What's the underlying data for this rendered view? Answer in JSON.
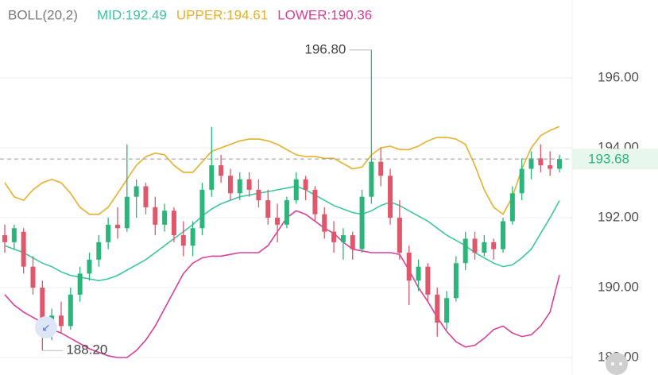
{
  "chart_data": {
    "type": "candlestick",
    "indicator_label": "BOLL(20,2)",
    "ylim": [
      187.5,
      198.23
    ],
    "yticks": [
      {
        "value": 188,
        "label": "188.00"
      },
      {
        "value": 190,
        "label": "190.00"
      },
      {
        "value": 192,
        "label": "192.00"
      },
      {
        "value": 194,
        "label": "194.00"
      },
      {
        "value": 196,
        "label": "196.00"
      }
    ],
    "grid": true,
    "up_color": "#2bb57a",
    "down_color": "#e0566a",
    "max_label": "196.80",
    "min_label": "188.20",
    "candles": {
      "open": [
        191.5,
        191.3,
        191.6,
        190.6,
        190.0,
        188.8,
        189.2,
        188.9,
        189.8,
        190.4,
        190.8,
        191.3,
        191.8,
        191.7,
        192.6,
        192.9,
        192.3,
        191.8,
        192.2,
        191.5,
        191.2,
        191.7,
        192.8,
        193.5,
        193.2,
        192.7,
        193.1,
        192.8,
        192.5,
        192.0,
        191.8,
        192.5,
        193.1,
        192.8,
        192.1,
        191.6,
        191.3,
        191.5,
        191.1,
        192.6,
        193.6,
        193.2,
        192.0,
        191.0,
        190.2,
        190.6,
        189.8,
        189.0,
        189.7,
        190.7,
        191.4,
        191.0,
        191.3,
        191.1,
        191.9,
        192.7,
        193.4,
        193.7,
        193.5,
        193.4
      ],
      "high": [
        191.8,
        191.8,
        191.7,
        190.9,
        190.2,
        189.4,
        189.6,
        190.0,
        190.6,
        191.0,
        191.5,
        192.0,
        192.3,
        194.1,
        193.1,
        193.0,
        192.6,
        192.4,
        192.3,
        191.9,
        191.9,
        193.0,
        194.6,
        193.8,
        193.4,
        193.3,
        193.3,
        193.1,
        192.8,
        192.4,
        192.6,
        193.3,
        193.2,
        192.9,
        192.3,
        191.9,
        191.7,
        191.6,
        192.8,
        196.8,
        194.0,
        193.4,
        192.5,
        191.2,
        190.8,
        190.7,
        190.0,
        189.9,
        190.9,
        191.6,
        191.6,
        191.5,
        191.4,
        192.0,
        192.9,
        193.7,
        193.9,
        194.1,
        193.9,
        193.8
      ],
      "low": [
        191.0,
        191.1,
        190.4,
        189.8,
        188.2,
        188.5,
        188.7,
        188.8,
        189.6,
        190.2,
        190.6,
        191.1,
        191.4,
        191.6,
        192.0,
        192.1,
        191.5,
        191.6,
        191.3,
        190.9,
        190.9,
        191.5,
        192.6,
        193.0,
        192.5,
        192.5,
        192.6,
        192.3,
        191.8,
        191.3,
        191.7,
        192.4,
        192.5,
        191.9,
        191.4,
        191.0,
        190.8,
        190.8,
        191.0,
        192.4,
        192.9,
        191.8,
        190.8,
        189.5,
        189.9,
        189.6,
        188.6,
        188.8,
        189.6,
        190.5,
        190.8,
        190.9,
        190.8,
        191.0,
        191.8,
        192.5,
        193.1,
        193.3,
        193.2,
        193.3
      ],
      "close": [
        191.3,
        191.7,
        190.6,
        190.0,
        188.8,
        189.2,
        188.9,
        189.8,
        190.4,
        190.8,
        191.3,
        191.8,
        191.7,
        192.6,
        192.9,
        192.3,
        191.8,
        192.2,
        191.5,
        191.2,
        191.7,
        192.8,
        193.5,
        193.2,
        192.7,
        193.1,
        192.8,
        192.5,
        192.0,
        191.8,
        192.5,
        193.1,
        192.8,
        192.1,
        191.6,
        191.3,
        191.5,
        191.1,
        192.6,
        193.6,
        193.2,
        192.0,
        191.0,
        190.2,
        190.6,
        189.8,
        189.0,
        189.7,
        190.7,
        191.4,
        191.0,
        191.3,
        191.1,
        191.9,
        192.7,
        193.4,
        193.7,
        193.5,
        193.4,
        193.68
      ]
    },
    "series": [
      {
        "name": "MID",
        "label": "MID:192.49",
        "color": "#3cc6a0",
        "values": [
          191.2,
          191.1,
          191.0,
          190.85,
          190.7,
          190.6,
          190.45,
          190.35,
          190.3,
          190.25,
          190.2,
          190.25,
          190.35,
          190.5,
          190.65,
          190.8,
          191.0,
          191.2,
          191.4,
          191.6,
          191.8,
          192.05,
          192.25,
          192.4,
          192.5,
          192.6,
          192.65,
          192.7,
          192.75,
          192.8,
          192.85,
          192.9,
          192.8,
          192.65,
          192.5,
          192.35,
          192.25,
          192.15,
          192.1,
          192.2,
          192.35,
          192.45,
          192.35,
          192.2,
          192.05,
          191.9,
          191.7,
          191.5,
          191.35,
          191.2,
          191.0,
          190.85,
          190.7,
          190.6,
          190.65,
          190.85,
          191.1,
          191.55,
          192.0,
          192.49
        ]
      },
      {
        "name": "UPPER",
        "label": "UPPER:194.61",
        "color": "#e6b02c",
        "values": [
          193.0,
          192.6,
          192.5,
          192.8,
          193.0,
          193.1,
          193.0,
          192.7,
          192.3,
          192.1,
          192.1,
          192.3,
          192.7,
          193.1,
          193.5,
          193.75,
          193.85,
          193.8,
          193.5,
          193.3,
          193.3,
          193.6,
          193.9,
          194.0,
          194.1,
          194.2,
          194.25,
          194.25,
          194.2,
          194.1,
          193.95,
          193.8,
          193.75,
          193.75,
          193.7,
          193.7,
          193.55,
          193.4,
          193.45,
          193.8,
          194.0,
          194.05,
          193.95,
          193.95,
          194.05,
          194.2,
          194.3,
          194.3,
          194.25,
          194.1,
          193.5,
          192.8,
          192.3,
          192.1,
          192.6,
          193.4,
          194.0,
          194.35,
          194.5,
          194.61
        ]
      },
      {
        "name": "LOWER",
        "label": "LOWER:190.36",
        "color": "#d6409a",
        "values": [
          189.8,
          189.5,
          189.3,
          189.15,
          189.0,
          188.8,
          188.7,
          188.55,
          188.4,
          188.25,
          188.15,
          188.05,
          188.0,
          188.0,
          188.2,
          188.5,
          188.9,
          189.4,
          189.9,
          190.4,
          190.7,
          190.85,
          190.9,
          190.9,
          190.95,
          191.0,
          191.0,
          191.0,
          191.2,
          191.6,
          192.0,
          192.2,
          192.1,
          191.9,
          191.7,
          191.55,
          191.3,
          191.1,
          191.05,
          191.0,
          191.0,
          191.0,
          190.95,
          190.5,
          190.0,
          189.6,
          189.15,
          188.75,
          188.45,
          188.3,
          188.35,
          188.55,
          188.8,
          188.9,
          188.7,
          188.6,
          188.65,
          188.9,
          189.3,
          190.36
        ]
      }
    ]
  }
}
